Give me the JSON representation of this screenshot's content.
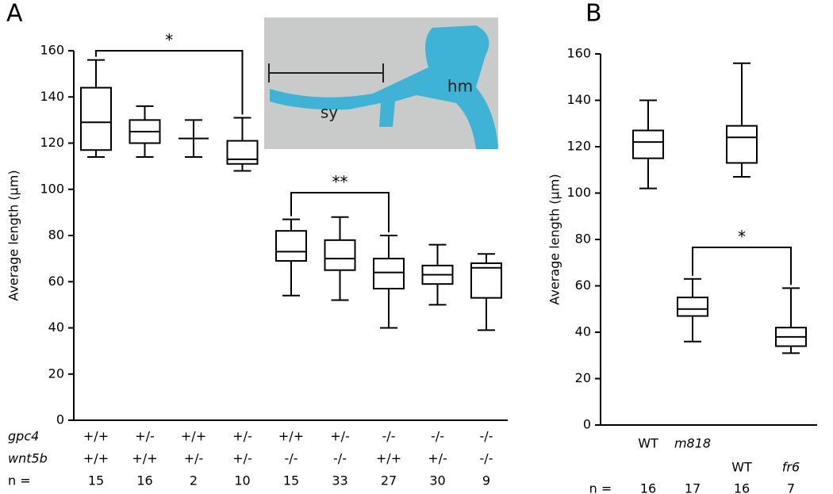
{
  "chart_data": [
    {
      "type": "box",
      "panel": "A",
      "ylabel": "Average length (µm)",
      "ylim": [
        0,
        160
      ],
      "yticks": [
        0,
        20,
        40,
        60,
        80,
        100,
        120,
        140,
        160
      ],
      "category_rows": [
        {
          "label": "gpc4",
          "values": [
            "+/+",
            "+/-",
            "+/+",
            "+/-",
            "+/+",
            "+/-",
            "-/-",
            "-/-",
            "-/-"
          ]
        },
        {
          "label": "wnt5b",
          "values": [
            "+/+",
            "+/+",
            "+/-",
            "+/-",
            "-/-",
            "-/-",
            "+/+",
            "+/-",
            "-/-"
          ]
        },
        {
          "label": "n =",
          "values": [
            15,
            16,
            2,
            10,
            15,
            33,
            27,
            30,
            9
          ]
        }
      ],
      "boxes": [
        {
          "min": 114,
          "q1": 117,
          "median": 129,
          "q3": 144,
          "max": 156
        },
        {
          "min": 114,
          "q1": 120,
          "median": 125,
          "q3": 130,
          "max": 136
        },
        {
          "min": 114,
          "q1": 122,
          "median": 122,
          "q3": 122,
          "max": 130
        },
        {
          "min": 108,
          "q1": 111,
          "median": 113,
          "q3": 121,
          "max": 131
        },
        {
          "min": 54,
          "q1": 69,
          "median": 73,
          "q3": 82,
          "max": 87
        },
        {
          "min": 52,
          "q1": 65,
          "median": 70,
          "q3": 78,
          "max": 88
        },
        {
          "min": 40,
          "q1": 57,
          "median": 64,
          "q3": 70,
          "max": 80
        },
        {
          "min": 50,
          "q1": 59,
          "median": 63,
          "q3": 67,
          "max": 76
        },
        {
          "min": 39,
          "q1": 53,
          "median": 66,
          "q3": 68,
          "max": 72
        }
      ],
      "significance": [
        "*",
        "**"
      ],
      "inset_labels": [
        "sy",
        "hm"
      ]
    },
    {
      "type": "box",
      "panel": "B",
      "ylabel": "Average length (µm)",
      "ylim": [
        0,
        160
      ],
      "yticks": [
        0,
        20,
        40,
        60,
        80,
        100,
        120,
        140,
        160
      ],
      "categories": [
        "WT",
        "m818",
        "WT",
        "fr6"
      ],
      "n_label": "n =",
      "n": [
        16,
        17,
        16,
        7
      ],
      "boxes": [
        {
          "min": 102,
          "q1": 115,
          "median": 122,
          "q3": 127,
          "max": 140
        },
        {
          "min": 36,
          "q1": 47,
          "median": 50,
          "q3": 55,
          "max": 63
        },
        {
          "min": 107,
          "q1": 113,
          "median": 124,
          "q3": 129,
          "max": 156
        },
        {
          "min": 31,
          "q1": 34,
          "median": 38,
          "q3": 42,
          "max": 59
        }
      ],
      "significance": [
        "*"
      ]
    }
  ]
}
